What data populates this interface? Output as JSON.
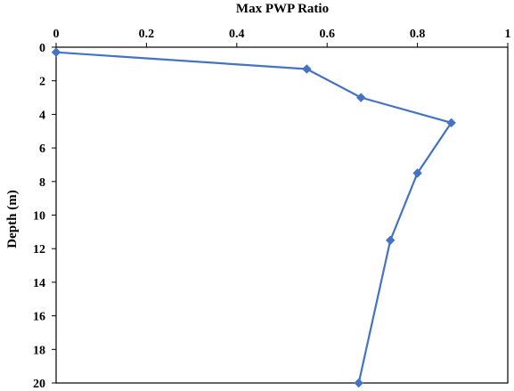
{
  "chart_data": {
    "type": "line",
    "title": "",
    "xlabel": "Max PWP Ratio",
    "ylabel": "Depth (m)",
    "x_axis_position": "top",
    "y_axis_inverted": true,
    "xlim": [
      0,
      1
    ],
    "ylim": [
      0,
      20
    ],
    "x_ticks": [
      "0",
      "0.2",
      "0.4",
      "0.6",
      "0.8",
      "1"
    ],
    "y_ticks": [
      "0",
      "2",
      "4",
      "6",
      "8",
      "10",
      "12",
      "14",
      "16",
      "18",
      "20"
    ],
    "grid": false,
    "legend": false,
    "series": [
      {
        "color": "#4472C4",
        "marker": "diamond",
        "points": [
          {
            "x": 0.0,
            "y": 0.3
          },
          {
            "x": 0.555,
            "y": 1.3
          },
          {
            "x": 0.675,
            "y": 3.0
          },
          {
            "x": 0.875,
            "y": 4.5
          },
          {
            "x": 0.8,
            "y": 7.5
          },
          {
            "x": 0.74,
            "y": 11.5
          },
          {
            "x": 0.67,
            "y": 20.0
          }
        ]
      }
    ]
  }
}
